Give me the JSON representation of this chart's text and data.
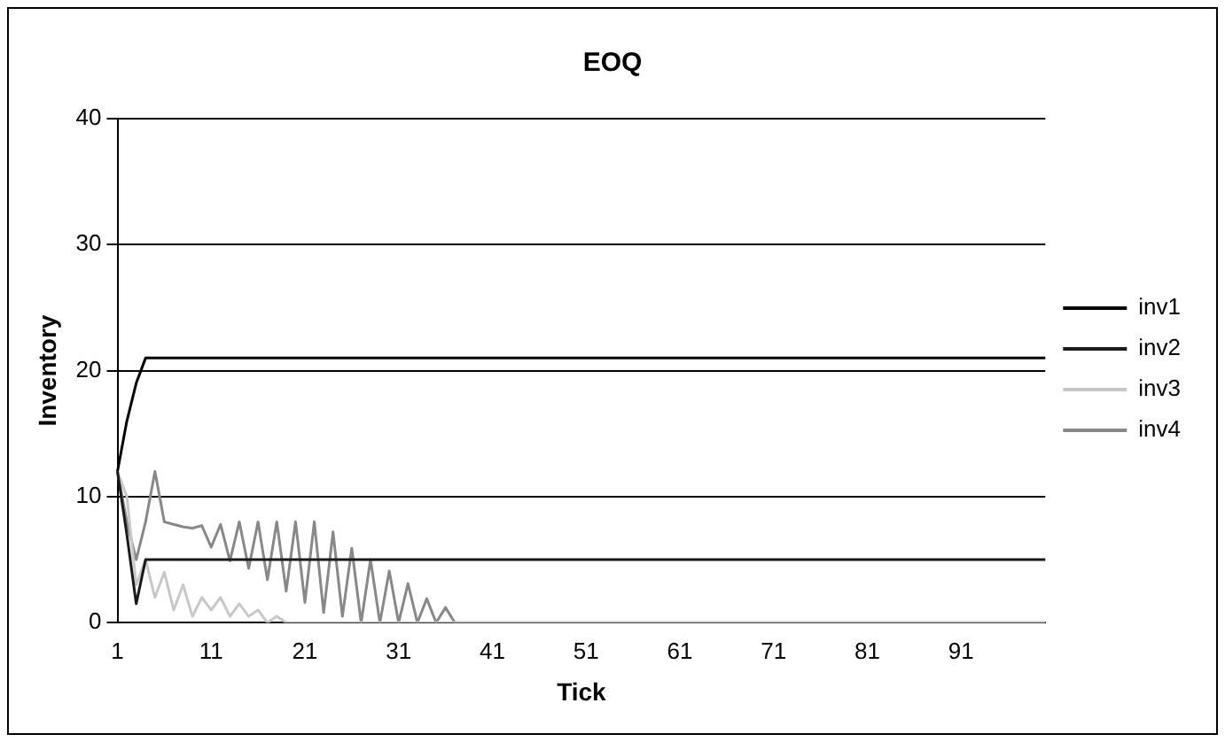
{
  "chart_data": {
    "type": "line",
    "title": "EOQ",
    "xlabel": "Tick",
    "ylabel": "Inventory",
    "categories": [
      "1",
      null,
      null,
      null,
      null,
      null,
      null,
      null,
      null,
      null,
      "11",
      null,
      null,
      null,
      null,
      null,
      null,
      null,
      null,
      null,
      "21",
      null,
      null,
      null,
      null,
      null,
      null,
      null,
      null,
      null,
      "31",
      null,
      null,
      null,
      null,
      null,
      null,
      null,
      null,
      null,
      "41",
      null,
      null,
      null,
      null,
      null,
      null,
      null,
      null,
      null,
      "51",
      null,
      null,
      null,
      null,
      null,
      null,
      null,
      null,
      null,
      "61",
      null,
      null,
      null,
      null,
      null,
      null,
      null,
      null,
      null,
      "71",
      null,
      null,
      null,
      null,
      null,
      null,
      null,
      null,
      null,
      "81",
      null,
      null,
      null,
      null,
      null,
      null,
      null,
      null,
      null,
      "91",
      null,
      null,
      null,
      null,
      null,
      null,
      null,
      null,
      null
    ],
    "series": [
      {
        "name": "inv1",
        "color": "#000000",
        "values": [
          12,
          16,
          19,
          21,
          21,
          21,
          21,
          21,
          21,
          21,
          21,
          21,
          21,
          21,
          21,
          21,
          21,
          21,
          21,
          21,
          21,
          21,
          21,
          21,
          21,
          21,
          21,
          21,
          21,
          21,
          21,
          21,
          21,
          21,
          21,
          21,
          21,
          21,
          21,
          21,
          21,
          21,
          21,
          21,
          21,
          21,
          21,
          21,
          21,
          21,
          21,
          21,
          21,
          21,
          21,
          21,
          21,
          21,
          21,
          21,
          21,
          21,
          21,
          21,
          21,
          21,
          21,
          21,
          21,
          21,
          21,
          21,
          21,
          21,
          21,
          21,
          21,
          21,
          21,
          21,
          21,
          21,
          21,
          21,
          21,
          21,
          21,
          21,
          21,
          21,
          21,
          21,
          21,
          21,
          21,
          21,
          21,
          21,
          21,
          21
        ]
      },
      {
        "name": "inv2",
        "color": "#1a1a1a",
        "values": [
          12,
          7,
          1.5,
          5,
          5,
          5,
          5,
          5,
          5,
          5,
          5,
          5,
          5,
          5,
          5,
          5,
          5,
          5,
          5,
          5,
          5,
          5,
          5,
          5,
          5,
          5,
          5,
          5,
          5,
          5,
          5,
          5,
          5,
          5,
          5,
          5,
          5,
          5,
          5,
          5,
          5,
          5,
          5,
          5,
          5,
          5,
          5,
          5,
          5,
          5,
          5,
          5,
          5,
          5,
          5,
          5,
          5,
          5,
          5,
          5,
          5,
          5,
          5,
          5,
          5,
          5,
          5,
          5,
          5,
          5,
          5,
          5,
          5,
          5,
          5,
          5,
          5,
          5,
          5,
          5,
          5,
          5,
          5,
          5,
          5,
          5,
          5,
          5,
          5,
          5,
          5,
          5,
          5,
          5,
          5,
          5,
          5,
          5,
          5,
          5
        ]
      },
      {
        "name": "inv3",
        "color": "#c8c8c8",
        "values": [
          12,
          10,
          3,
          5,
          2,
          4,
          1,
          3,
          0.5,
          2,
          1,
          2,
          0.5,
          1.5,
          0.5,
          1,
          0,
          0.5,
          0,
          0,
          0,
          0,
          0,
          0,
          0,
          0,
          0,
          0,
          0,
          0,
          0,
          0,
          0,
          0,
          0,
          0,
          0,
          0,
          0,
          0,
          0,
          0,
          0,
          0,
          0,
          0,
          0,
          0,
          0,
          0,
          0,
          0,
          0,
          0,
          0,
          0,
          0,
          0,
          0,
          0,
          0,
          0,
          0,
          0,
          0,
          0,
          0,
          0,
          0,
          0,
          0,
          0,
          0,
          0,
          0,
          0,
          0,
          0,
          0,
          0,
          0,
          0,
          0,
          0,
          0,
          0,
          0,
          0,
          0,
          0,
          0,
          0,
          0,
          0,
          0,
          0,
          0,
          0,
          0,
          0
        ]
      },
      {
        "name": "inv4",
        "color": "#888888",
        "values": [
          12,
          8,
          5,
          8,
          12,
          8,
          7.8,
          7.6,
          7.5,
          7.7,
          6,
          7.8,
          4.9,
          8,
          4.3,
          8,
          3.4,
          8,
          2.5,
          8,
          1.6,
          8,
          0.8,
          7.2,
          0.5,
          5.9,
          0,
          5,
          0,
          4.1,
          0,
          3.1,
          0,
          1.9,
          0,
          1.2,
          0,
          0,
          0,
          0,
          0,
          0,
          0,
          0,
          0,
          0,
          0,
          0,
          0,
          0,
          0,
          0,
          0,
          0,
          0,
          0,
          0,
          0,
          0,
          0,
          0,
          0,
          0,
          0,
          0,
          0,
          0,
          0,
          0,
          0,
          0,
          0,
          0,
          0,
          0,
          0,
          0,
          0,
          0,
          0,
          0,
          0,
          0,
          0,
          0,
          0,
          0,
          0,
          0,
          0,
          0,
          0,
          0,
          0,
          0,
          0,
          0,
          0,
          0,
          0
        ]
      }
    ],
    "ylim": [
      0,
      40
    ],
    "yticks": [
      0,
      10,
      20,
      30,
      40
    ],
    "grid": "y",
    "legend": "right",
    "marker": "none",
    "line_style": "solid"
  }
}
